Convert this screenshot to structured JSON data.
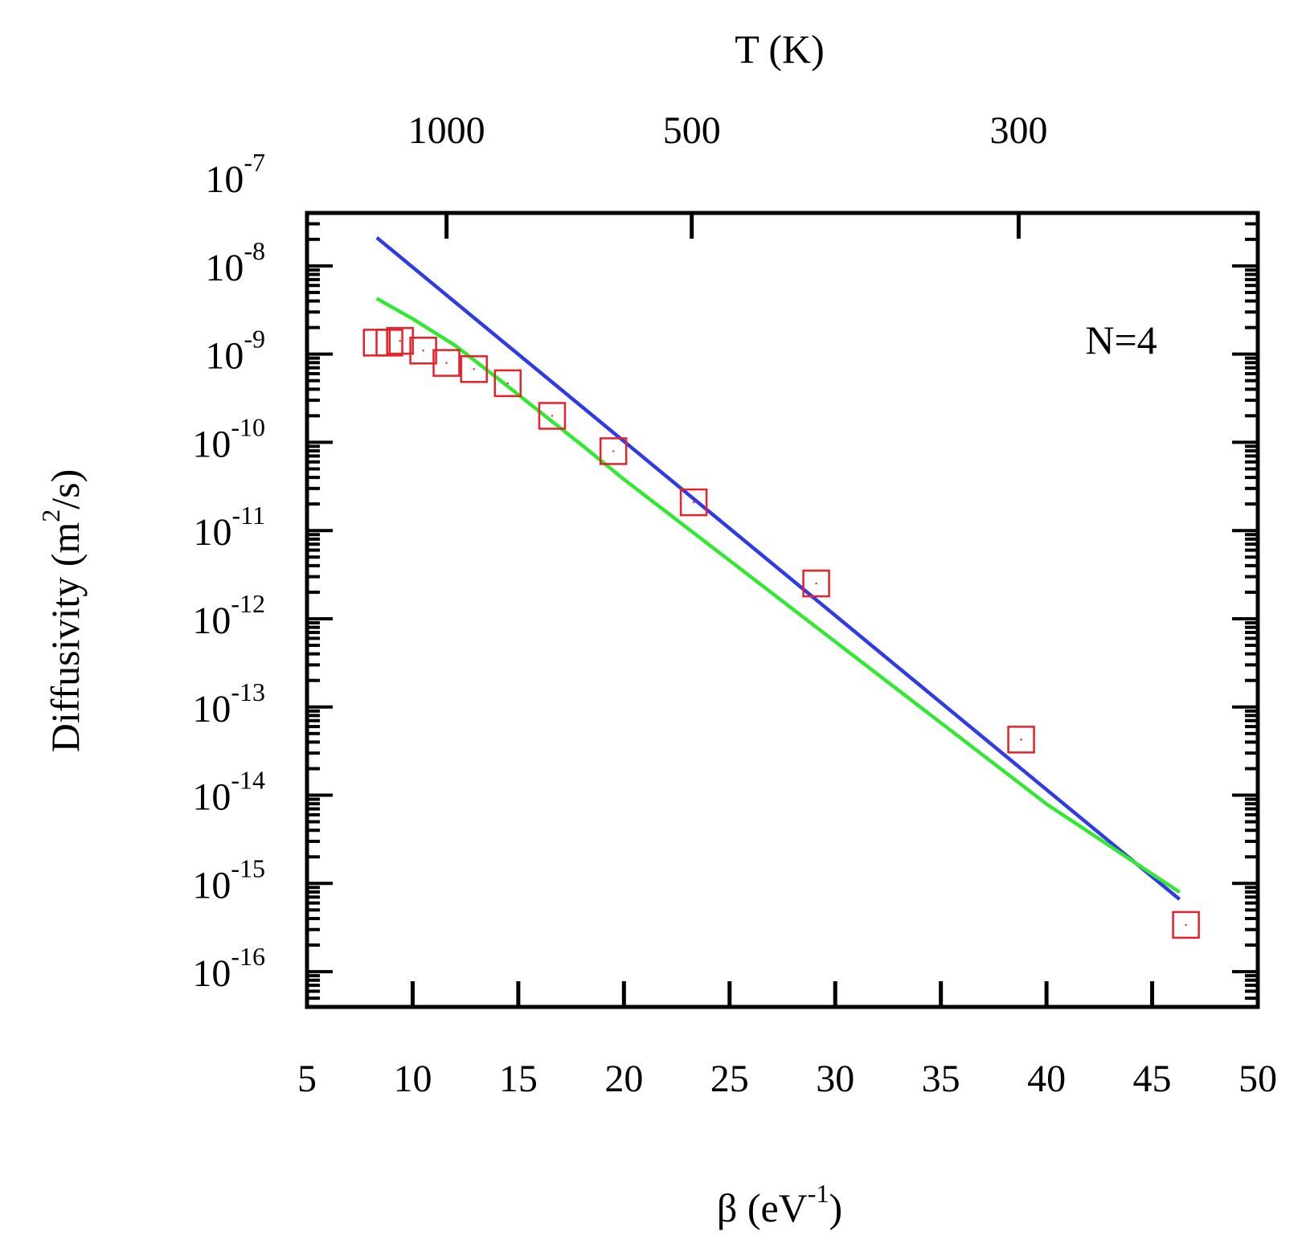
{
  "chart_data": {
    "type": "scatter",
    "annotation": "N=4",
    "xlabel": {
      "main": "β (eV",
      "sup": "-1",
      "close": ")"
    },
    "ylabel": {
      "main": "Diffusivity (m",
      "sup": "2",
      "close": "/s)"
    },
    "top_axis_label": "T (K)",
    "x_range": [
      5,
      50
    ],
    "x_ticks": [
      "5",
      "10",
      "15",
      "20",
      "25",
      "30",
      "35",
      "40",
      "45",
      "50"
    ],
    "y_range_log10": [
      -16.4,
      -7.4
    ],
    "y_ticks": [
      {
        "base": "10",
        "exp": "-7"
      },
      {
        "base": "10",
        "exp": "-8"
      },
      {
        "base": "10",
        "exp": "-9"
      },
      {
        "base": "10",
        "exp": "-10"
      },
      {
        "base": "10",
        "exp": "-11"
      },
      {
        "base": "10",
        "exp": "-12"
      },
      {
        "base": "10",
        "exp": "-13"
      },
      {
        "base": "10",
        "exp": "-14"
      },
      {
        "base": "10",
        "exp": "-15"
      },
      {
        "base": "10",
        "exp": "-16"
      }
    ],
    "top_ticks": [
      {
        "label": "1000",
        "T": 1000
      },
      {
        "label": "500",
        "T": 500
      },
      {
        "label": "300",
        "T": 300
      }
    ],
    "series": [
      {
        "name": "data",
        "kind": "markers",
        "marker": "open-square",
        "color": "#e8202a",
        "points": [
          [
            8.3,
            -8.87
          ],
          [
            8.9,
            -8.87
          ],
          [
            9.4,
            -8.85
          ],
          [
            10.5,
            -8.96
          ],
          [
            11.6,
            -9.1
          ],
          [
            12.9,
            -9.17
          ],
          [
            14.5,
            -9.33
          ],
          [
            16.6,
            -9.7
          ],
          [
            19.5,
            -10.1
          ],
          [
            23.3,
            -10.68
          ],
          [
            29.1,
            -11.6
          ],
          [
            38.8,
            -13.37
          ],
          [
            46.6,
            -15.47
          ]
        ]
      },
      {
        "name": "blue fit",
        "kind": "line",
        "color": "#2f3ce6",
        "points": [
          [
            8.3,
            -7.68
          ],
          [
            46.3,
            -15.18
          ]
        ]
      },
      {
        "name": "green fit",
        "kind": "line",
        "color": "#33e833",
        "points": [
          [
            8.3,
            -8.37
          ],
          [
            10,
            -8.6
          ],
          [
            12,
            -8.9
          ],
          [
            14,
            -9.27
          ],
          [
            16,
            -9.65
          ],
          [
            18,
            -10.03
          ],
          [
            20,
            -10.42
          ],
          [
            25,
            -11.34
          ],
          [
            30,
            -12.26
          ],
          [
            35,
            -13.18
          ],
          [
            40,
            -14.1
          ],
          [
            46.3,
            -15.1
          ]
        ]
      }
    ]
  }
}
